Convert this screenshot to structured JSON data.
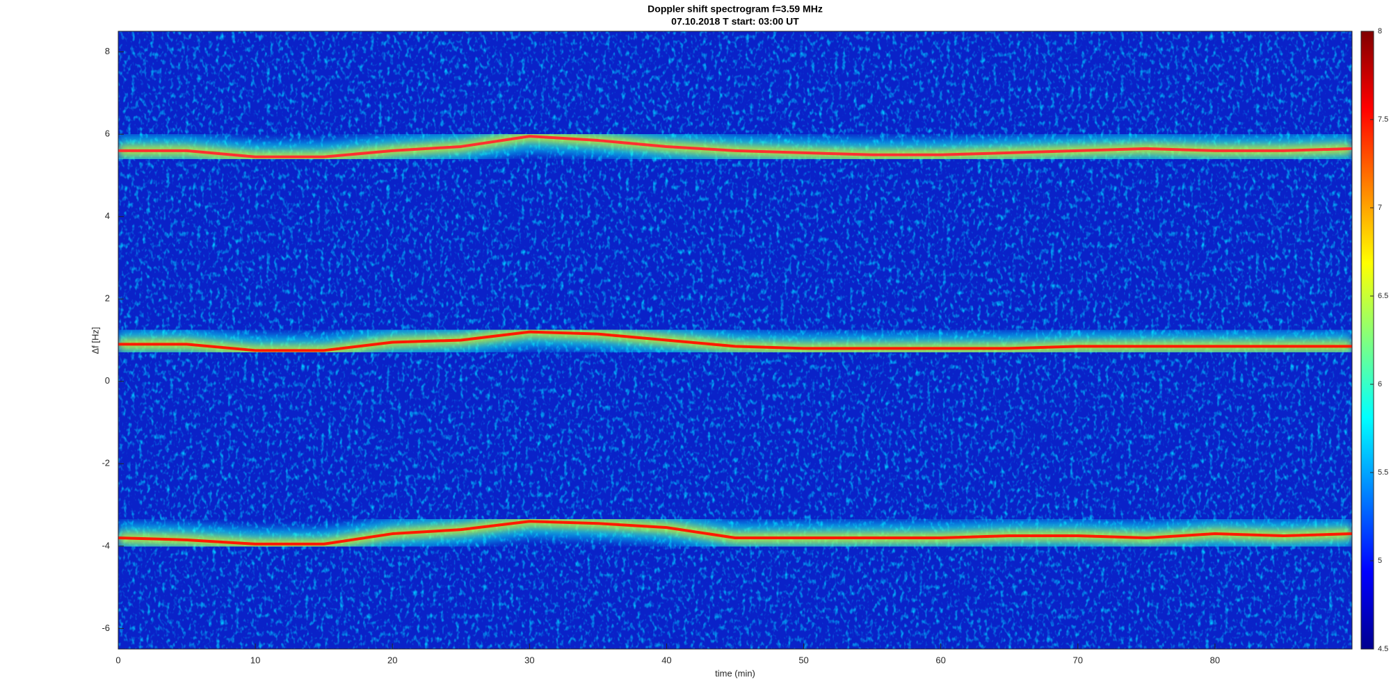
{
  "chart_data": {
    "type": "spectrogram",
    "title": "Doppler shift spectrogram f=3.59 MHz",
    "subtitle": "07.10.2018   T start: 03:00 UT",
    "x_label": "time (min)",
    "y_label": "Δf [Hz]",
    "x": [
      0,
      5,
      10,
      15,
      20,
      25,
      30,
      35,
      40,
      45,
      50,
      55,
      60,
      65,
      70,
      75,
      80,
      85,
      90
    ],
    "series": [
      {
        "color": "#ff3030",
        "values": [
          5.6,
          5.6,
          5.45,
          5.45,
          5.6,
          5.7,
          5.95,
          5.85,
          5.7,
          5.6,
          5.55,
          5.5,
          5.5,
          5.55,
          5.6,
          5.65,
          5.6,
          5.6,
          5.65
        ]
      },
      {
        "color": "#ff1a00",
        "values": [
          0.9,
          0.9,
          0.75,
          0.75,
          0.95,
          1.0,
          1.2,
          1.15,
          1.0,
          0.85,
          0.8,
          0.8,
          0.8,
          0.8,
          0.85,
          0.85,
          0.85,
          0.85,
          0.85
        ]
      },
      {
        "color": "#ff1a00",
        "values": [
          -3.8,
          -3.85,
          -3.95,
          -3.95,
          -3.7,
          -3.6,
          -3.4,
          -3.45,
          -3.55,
          -3.8,
          -3.8,
          -3.8,
          -3.8,
          -3.75,
          -3.75,
          -3.8,
          -3.7,
          -3.75,
          -3.7
        ]
      }
    ],
    "xlim": [
      0,
      90
    ],
    "xticks": [
      0,
      10,
      20,
      30,
      40,
      50,
      60,
      70,
      80
    ],
    "ylim": [
      -6.5,
      8.5
    ],
    "yticks": [
      -6,
      -4,
      -2,
      0,
      2,
      4,
      6,
      8
    ],
    "clim": [
      4.5,
      8
    ],
    "cticks": [
      4.5,
      5,
      5.5,
      6,
      6.5,
      7,
      7.5,
      8
    ],
    "colormap": [
      "#00008f",
      "#0000ff",
      "#0080ff",
      "#00ffff",
      "#80ff80",
      "#ffff00",
      "#ff8000",
      "#ff0000",
      "#800000"
    ],
    "background_color": "#0a22c8"
  }
}
